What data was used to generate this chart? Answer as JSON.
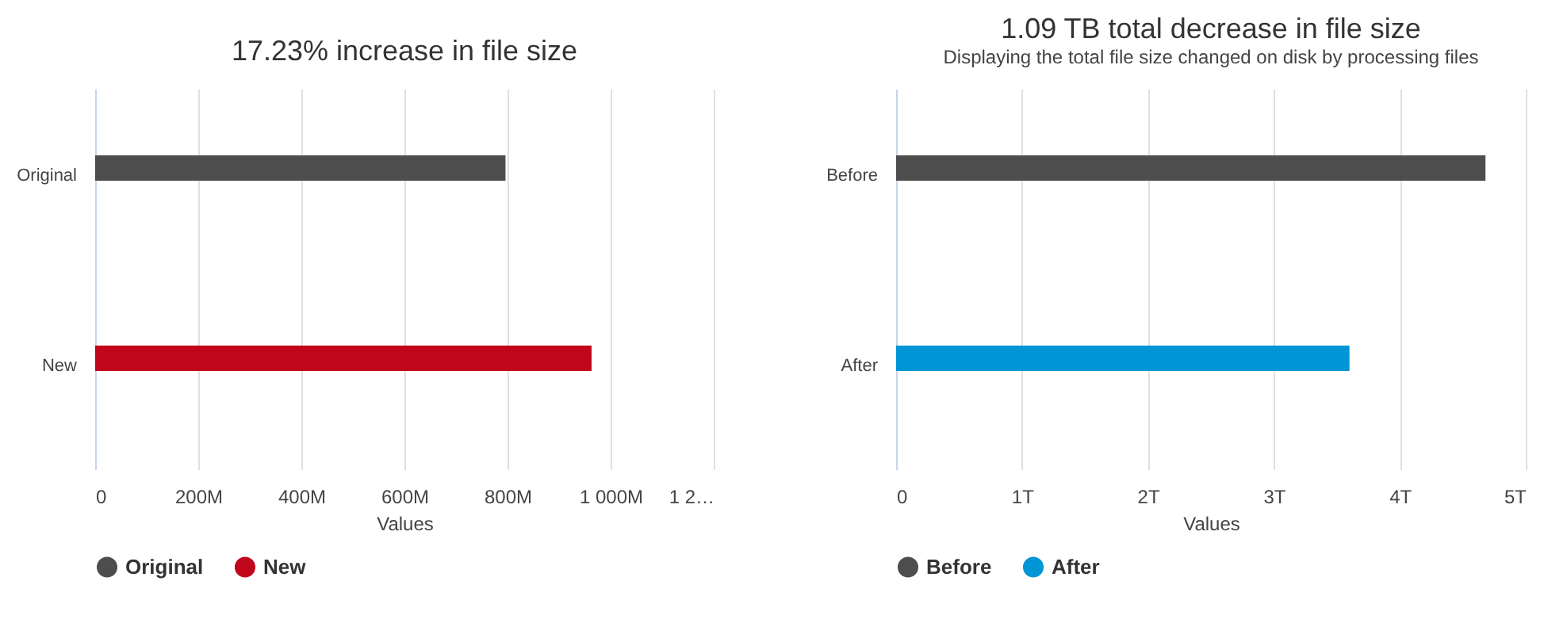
{
  "chart_data": [
    {
      "type": "bar",
      "orientation": "horizontal",
      "title": "17.23% increase in file size",
      "xlabel": "Values",
      "categories": [
        "Original",
        "New"
      ],
      "series": [
        {
          "name": "Original",
          "color": "#4d4d4d",
          "values": [
            796,
            null
          ]
        },
        {
          "name": "New",
          "color": "#c0061b",
          "values": [
            null,
            963
          ]
        }
      ],
      "xlim": [
        0,
        1200
      ],
      "xticks": [
        0,
        {
          "value": 200,
          "label": "200M"
        },
        {
          "value": 400,
          "label": "400M"
        },
        {
          "value": 600,
          "label": "600M"
        },
        {
          "value": 800,
          "label": "800M"
        },
        {
          "value": 1000,
          "label": "1 000M"
        },
        {
          "value": 1200,
          "label": "1 2…"
        }
      ],
      "grid": "x",
      "legend": "bottom"
    },
    {
      "type": "bar",
      "orientation": "horizontal",
      "title": "1.09 TB total decrease in file size",
      "subtitle": "Displaying the total file size changed on disk by processing files",
      "xlabel": "Values",
      "categories": [
        "Before",
        "After"
      ],
      "series": [
        {
          "name": "Before",
          "color": "#4d4d4d",
          "values": [
            4.68,
            null
          ]
        },
        {
          "name": "After",
          "color": "#0096d6",
          "values": [
            null,
            3.6
          ]
        }
      ],
      "xlim": [
        0,
        5
      ],
      "xticks": [
        0,
        {
          "value": 1,
          "label": "1T"
        },
        {
          "value": 2,
          "label": "2T"
        },
        {
          "value": 3,
          "label": "3T"
        },
        {
          "value": 4,
          "label": "4T"
        },
        {
          "value": 5,
          "label": "5T"
        }
      ],
      "grid": "x",
      "legend": "bottom"
    }
  ]
}
